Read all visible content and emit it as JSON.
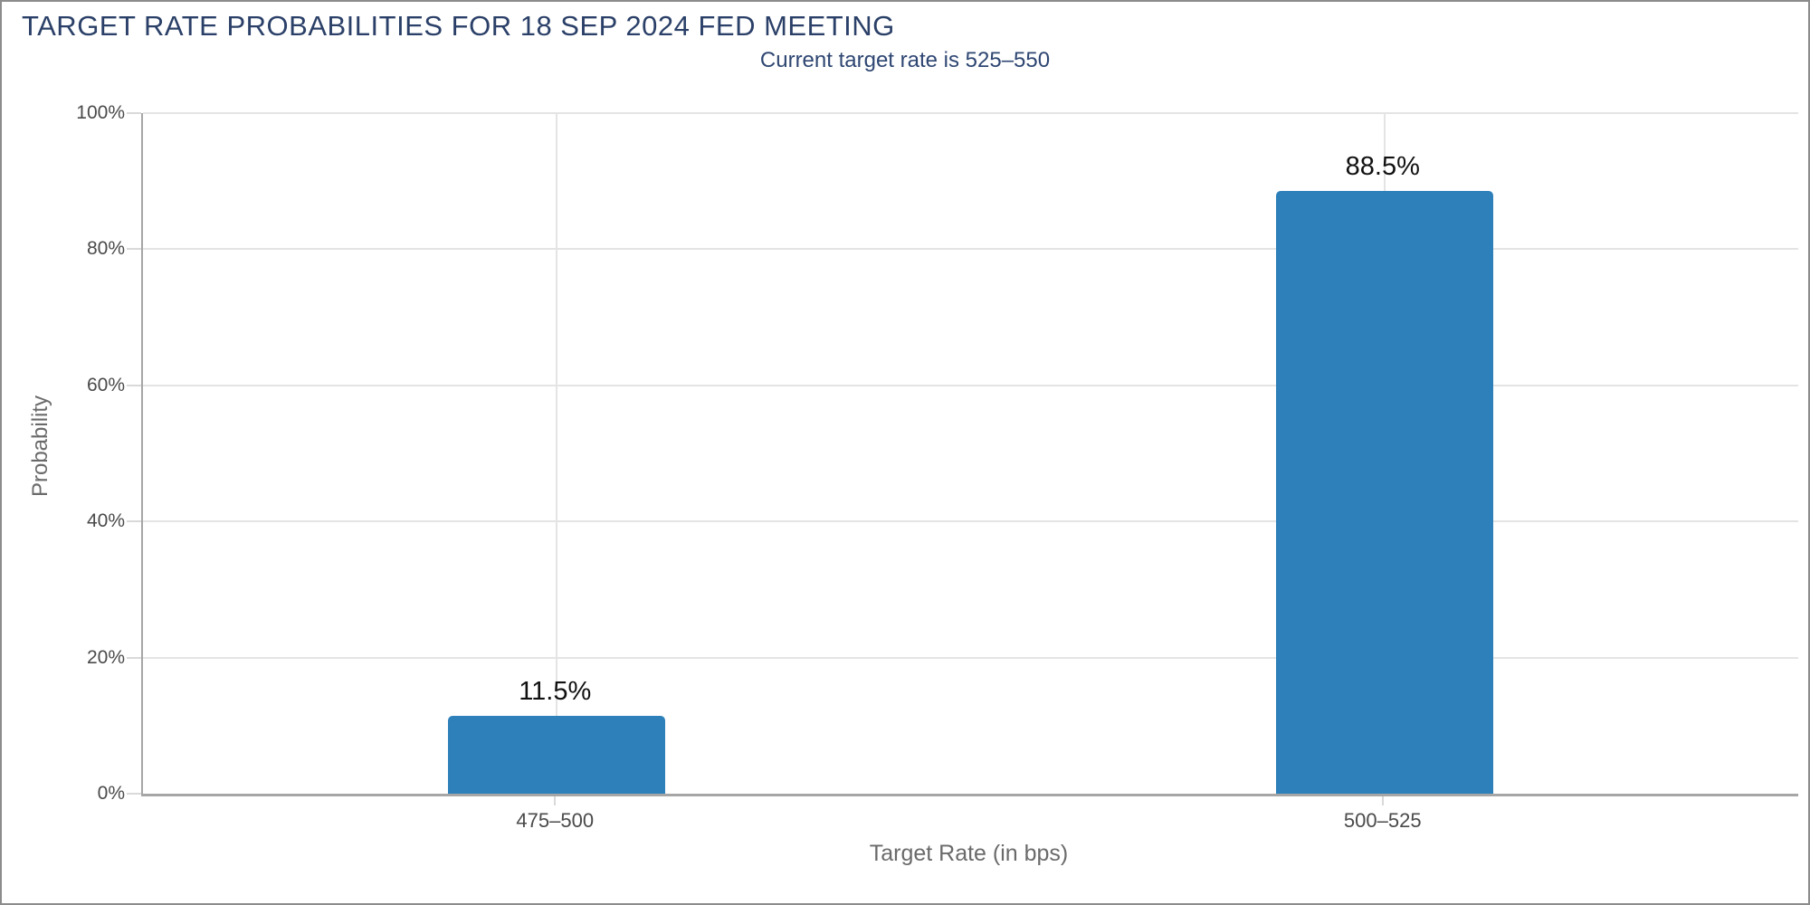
{
  "window": {
    "background": "#ffffff",
    "frame_border_color": "#8c8c8c"
  },
  "colors": {
    "title_text": "#2b4068",
    "subtitle_text": "#2e4672",
    "tick_text": "#4a4a4a",
    "axis_title_text": "#6a6a6a",
    "value_label_text": "#111111",
    "grid_line": "#e4e4e4",
    "tick_mark": "#d9d9d9",
    "axis_line": "#a6a6a6",
    "bar": "#2d80b9",
    "frame_border": "#8c8c8c"
  },
  "chart_data": {
    "type": "bar",
    "title": "TARGET RATE PROBABILITIES FOR 18 SEP 2024 FED MEETING",
    "subtitle": "Current target rate is 525–550",
    "xlabel": "Target Rate (in bps)",
    "ylabel": "Probability",
    "categories": [
      "475–500",
      "500–525"
    ],
    "values": [
      11.5,
      88.5
    ],
    "value_labels": [
      "11.5%",
      "88.5%"
    ],
    "series": [
      {
        "name": "Probability",
        "values": [
          11.5,
          88.5
        ]
      }
    ],
    "ylim": [
      0,
      100
    ],
    "yticks": [
      0,
      20,
      40,
      60,
      80,
      100
    ],
    "ytick_labels": [
      "0%",
      "20%",
      "40%",
      "60%",
      "80%",
      "100%"
    ],
    "grid": true,
    "legend_position": "none",
    "bar_color": "#2d80b9"
  }
}
